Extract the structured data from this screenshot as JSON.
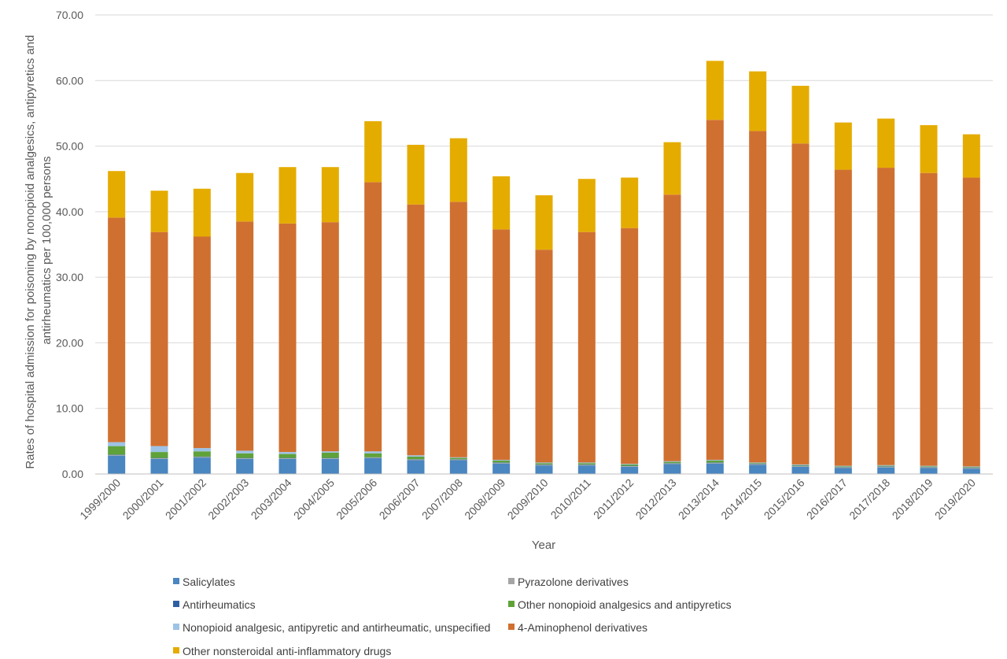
{
  "chart_data": {
    "type": "bar",
    "stacked": true,
    "title": "",
    "xlabel": "Year",
    "ylabel_lines": [
      "Rates of hospital admission for poisoning by nonopioid analgesics, antipyretics and",
      "antirheumatics per 100,000 persons"
    ],
    "ylim": [
      0,
      70
    ],
    "yticks": [
      "0.00",
      "10.00",
      "20.00",
      "30.00",
      "40.00",
      "50.00",
      "60.00",
      "70.00"
    ],
    "grid": true,
    "legend_position": "bottom",
    "categories": [
      "1999/2000",
      "2000/2001",
      "2001/2002",
      "2002/2003",
      "2003/2004",
      "2004/2005",
      "2005/2006",
      "2006/2007",
      "2007/2008",
      "2008/2009",
      "2009/2010",
      "2010/2011",
      "2011/2012",
      "2012/2013",
      "2013/2014",
      "2014/2015",
      "2015/2016",
      "2016/2017",
      "2017/2018",
      "2018/2019",
      "2019/2020"
    ],
    "series": [
      {
        "name": "Salicylates",
        "color": "#4a86c0",
        "values": [
          2.8,
          2.3,
          2.5,
          2.3,
          2.3,
          2.3,
          2.4,
          2.1,
          2.1,
          1.6,
          1.3,
          1.3,
          1.1,
          1.5,
          1.6,
          1.4,
          1.1,
          0.9,
          1.0,
          0.9,
          0.8
        ]
      },
      {
        "name": "Pyrazolone derivatives",
        "color": "#a5a5a5",
        "values": [
          0.1,
          0.1,
          0.1,
          0.1,
          0.1,
          0.1,
          0.1,
          0.1,
          0.1,
          0.1,
          0.1,
          0.1,
          0.1,
          0.1,
          0.1,
          0.1,
          0.1,
          0.1,
          0.1,
          0.1,
          0.1
        ]
      },
      {
        "name": "Antirheumatics",
        "color": "#2e5fa4",
        "values": [
          0.05,
          0.05,
          0.05,
          0.05,
          0.05,
          0.05,
          0.05,
          0.05,
          0.05,
          0.05,
          0.05,
          0.05,
          0.05,
          0.05,
          0.05,
          0.05,
          0.05,
          0.05,
          0.05,
          0.05,
          0.05
        ]
      },
      {
        "name": "Other nonopioid analgesics and antipyretics",
        "color": "#5fa23a",
        "values": [
          1.3,
          0.9,
          0.8,
          0.7,
          0.6,
          0.8,
          0.6,
          0.4,
          0.2,
          0.3,
          0.2,
          0.2,
          0.2,
          0.2,
          0.3,
          0.1,
          0.1,
          0.1,
          0.1,
          0.1,
          0.1
        ]
      },
      {
        "name": "Nonopioid analgesic, antipyretic and antirheumatic, unspecified",
        "color": "#9dc3e6",
        "values": [
          0.6,
          0.9,
          0.5,
          0.4,
          0.3,
          0.2,
          0.3,
          0.2,
          0.1,
          0.1,
          0.1,
          0.1,
          0.1,
          0.1,
          0.1,
          0.1,
          0.1,
          0.1,
          0.1,
          0.1,
          0.1
        ]
      },
      {
        "name": "4-Aminophenol derivatives",
        "color": "#d07030",
        "values": [
          34.25,
          32.65,
          32.25,
          34.95,
          34.85,
          34.95,
          41.05,
          38.25,
          38.95,
          35.15,
          32.45,
          35.15,
          35.95,
          40.65,
          51.85,
          50.55,
          48.95,
          45.15,
          45.35,
          44.65,
          44.05
        ]
      },
      {
        "name": "Other nonsteroidal anti-inflammatory drugs",
        "color": "#e5ac00",
        "values": [
          7.1,
          6.3,
          7.3,
          7.4,
          8.6,
          8.4,
          9.3,
          9.1,
          9.7,
          8.1,
          8.3,
          8.1,
          7.7,
          8.0,
          9.0,
          9.1,
          8.8,
          7.2,
          7.5,
          7.3,
          6.6
        ]
      }
    ]
  }
}
